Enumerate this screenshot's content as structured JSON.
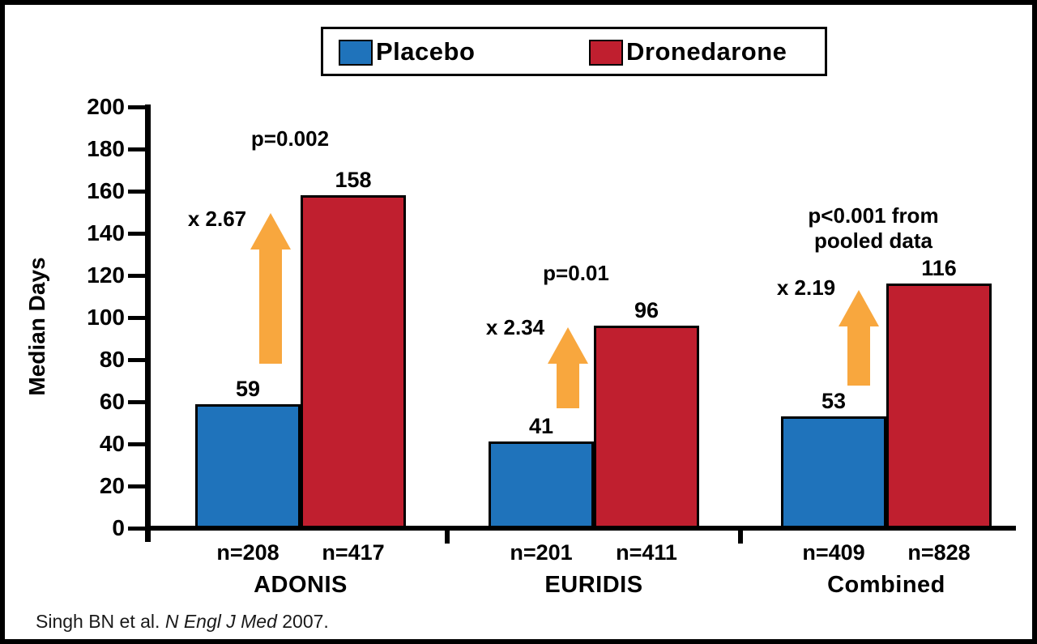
{
  "chart_data": {
    "type": "bar",
    "title": "",
    "xlabel": "",
    "ylabel": "Median Days",
    "ylim": [
      0,
      200
    ],
    "ytick_step": 20,
    "grid": false,
    "legend_position": "top",
    "categories": [
      "ADONIS",
      "EURIDIS",
      "Combined"
    ],
    "series": [
      {
        "name": "Placebo",
        "color": "#1F73BB",
        "values": [
          59,
          41,
          53
        ],
        "n_labels": [
          "n=208",
          "n=201",
          "n=409"
        ]
      },
      {
        "name": "Dronedarone",
        "color": "#C01F2F",
        "values": [
          158,
          96,
          116
        ],
        "n_labels": [
          "n=417",
          "n=411",
          "n=828"
        ]
      }
    ],
    "annotations": [
      {
        "category": "ADONIS",
        "p_label": "p=0.002",
        "multiplier_label": "x 2.67"
      },
      {
        "category": "EURIDIS",
        "p_label": "p=0.01",
        "multiplier_label": "x 2.34"
      },
      {
        "category": "Combined",
        "p_label": "p<0.001 from\npooled data",
        "multiplier_label": "x 2.19"
      }
    ],
    "arrow_color": "#F8A73E"
  },
  "citation": {
    "prefix": "Singh BN et al. ",
    "journal": "N Engl J Med",
    "suffix": " 2007."
  }
}
